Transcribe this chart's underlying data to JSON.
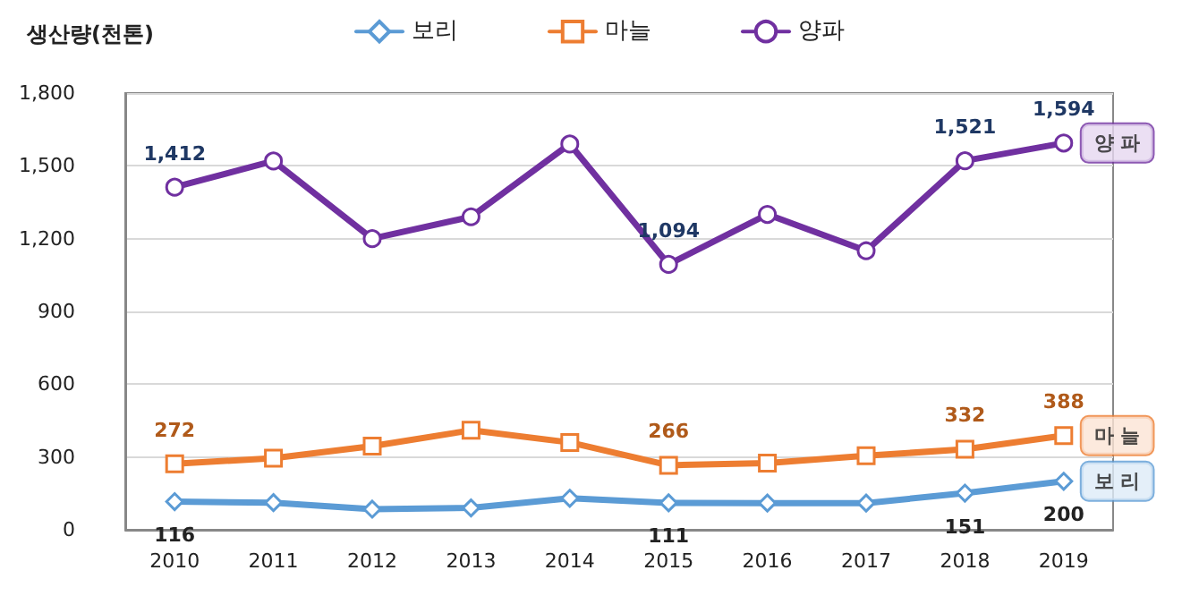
{
  "chart_data": {
    "type": "line",
    "ylabel": "생산량(천톤)",
    "categories": [
      "2010",
      "2011",
      "2012",
      "2013",
      "2014",
      "2015",
      "2016",
      "2017",
      "2018",
      "2019"
    ],
    "series": [
      {
        "name": "보리",
        "color": "#5b9bd5",
        "marker": "diamond",
        "values": [
          116,
          112,
          85,
          90,
          130,
          111,
          110,
          110,
          151,
          200
        ],
        "value_labels": [
          "116",
          null,
          null,
          null,
          null,
          "111",
          null,
          null,
          "151",
          "200"
        ]
      },
      {
        "name": "마늘",
        "color": "#ed7d31",
        "marker": "square",
        "values": [
          272,
          295,
          345,
          410,
          360,
          266,
          275,
          305,
          332,
          388
        ],
        "value_labels": [
          "272",
          null,
          null,
          null,
          null,
          "266",
          null,
          null,
          "332",
          "388"
        ]
      },
      {
        "name": "양파",
        "color": "#7030a0",
        "marker": "circle",
        "values": [
          1412,
          1520,
          1200,
          1290,
          1590,
          1094,
          1300,
          1150,
          1521,
          1594
        ],
        "value_labels": [
          "1,412",
          null,
          null,
          null,
          null,
          "1,094",
          null,
          null,
          "1,521",
          "1,594"
        ]
      }
    ],
    "annotations": [
      {
        "text": "양 파",
        "x": "2019",
        "y": 1594
      },
      {
        "text": "마 늘",
        "x": "2019",
        "y": 388
      },
      {
        "text": "보 리",
        "x": "2019",
        "y": 200
      }
    ],
    "ylim": [
      0,
      1800
    ],
    "yticks": [
      {
        "value": 0,
        "label": "0"
      },
      {
        "value": 300,
        "label": "300"
      },
      {
        "value": 600,
        "label": "600"
      },
      {
        "value": 900,
        "label": "900"
      },
      {
        "value": 1200,
        "label": "1,200"
      },
      {
        "value": 1500,
        "label": "1,500"
      },
      {
        "value": 1800,
        "label": "1,800"
      }
    ],
    "grid": "y",
    "legend": "top",
    "line_style": "solid"
  }
}
